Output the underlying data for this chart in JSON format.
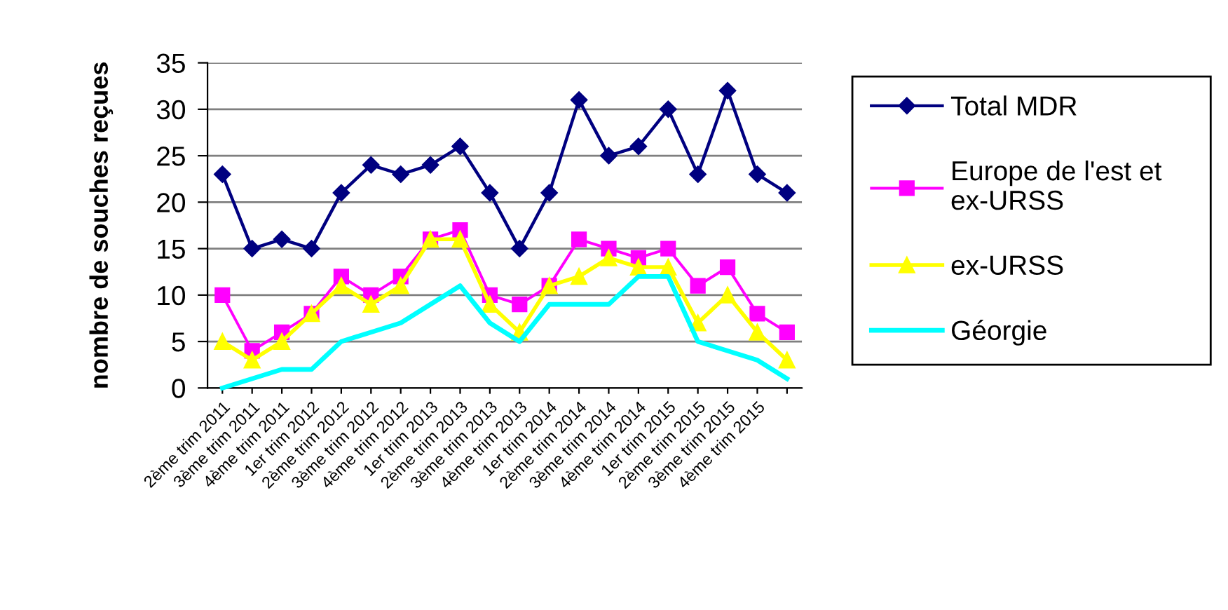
{
  "chart_data": {
    "type": "line",
    "ylabel": "nombre de souches reçues",
    "categories": [
      "2ème trim 2011",
      "3ème trim 2011",
      "4ème trim 2011",
      "1er trim 2012",
      "2ème trim 2012",
      "3ème trim 2012",
      "4ème trim 2012",
      "1er trim 2013",
      "2ème trim 2013",
      "3ème trim 2013",
      "4ème trim 2013",
      "1er trim 2014",
      "2ème trim 2014",
      "3ème trim 2014",
      "4ème trim 2014",
      "1er trim 2015",
      "2ème trim 2015",
      "3ème trim 2015",
      "4ème trim 2015",
      null
    ],
    "series": [
      {
        "name": "Total MDR",
        "color": "#000080",
        "marker": "diamond",
        "values": [
          23,
          15,
          16,
          15,
          21,
          24,
          23,
          24,
          26,
          21,
          15,
          21,
          31,
          25,
          26,
          30,
          23,
          32,
          23,
          21
        ]
      },
      {
        "name": "Europe de l'est et\nex-URSS",
        "color": "#ff00ff",
        "marker": "square",
        "values": [
          10,
          4,
          6,
          8,
          12,
          10,
          12,
          16,
          17,
          10,
          9,
          11,
          16,
          15,
          14,
          15,
          11,
          13,
          8,
          6
        ]
      },
      {
        "name": "ex-URSS",
        "color": "#ffff00",
        "marker": "triangle",
        "values": [
          5,
          3,
          5,
          8,
          11,
          9,
          11,
          16,
          16,
          9,
          6,
          11,
          12,
          14,
          13,
          13,
          7,
          10,
          6,
          3
        ]
      },
      {
        "name": "Géorgie",
        "color": "#00ffff",
        "marker": "none",
        "values": [
          0,
          1,
          2,
          2,
          5,
          6,
          7,
          9,
          11,
          7,
          5,
          9,
          9,
          9,
          12,
          12,
          5,
          4,
          3,
          1
        ]
      }
    ],
    "ylim": [
      0,
      35
    ],
    "yticks": [
      0,
      5,
      10,
      15,
      20,
      25,
      30,
      35
    ],
    "grid": "y",
    "legend": "right"
  }
}
